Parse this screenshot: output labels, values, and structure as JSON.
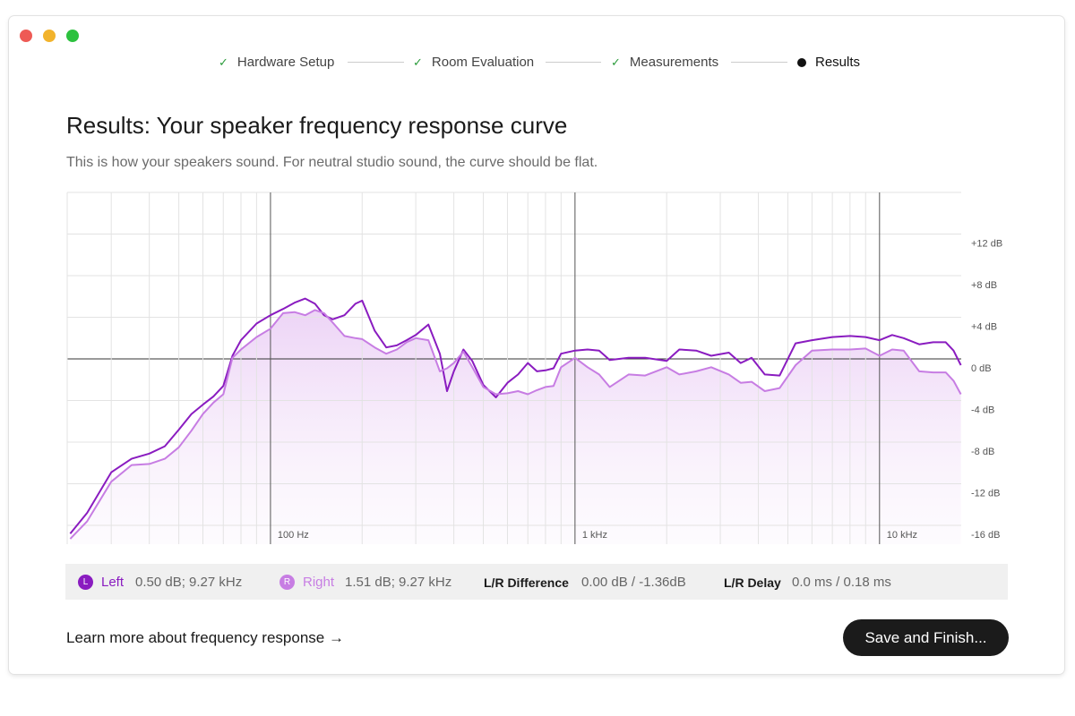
{
  "steps": [
    {
      "label": "Hardware Setup",
      "status": "done"
    },
    {
      "label": "Room Evaluation",
      "status": "done"
    },
    {
      "label": "Measurements",
      "status": "done"
    },
    {
      "label": "Results",
      "status": "current"
    }
  ],
  "heading": "Results: Your speaker frequency response curve",
  "subtitle": "This is how your speakers sound. For neutral studio sound, the curve should be flat.",
  "chart_data": {
    "type": "line",
    "xscale": "log",
    "grid": true,
    "xlim": [
      21.5,
      18800
    ],
    "ylim": [
      -16,
      16
    ],
    "xticks": [
      {
        "value": 100,
        "label": "100 Hz"
      },
      {
        "value": 1000,
        "label": "1 kHz"
      },
      {
        "value": 10000,
        "label": "10 kHz"
      }
    ],
    "yticks": [
      {
        "value": -16,
        "label": "-16 dB"
      },
      {
        "value": -12,
        "label": "-12 dB"
      },
      {
        "value": -8,
        "label": "-8 dB"
      },
      {
        "value": -4,
        "label": "-4 dB"
      },
      {
        "value": 0,
        "label": "0 dB"
      },
      {
        "value": 4,
        "label": "+4 dB"
      },
      {
        "value": 8,
        "label": "+8 dB"
      },
      {
        "value": 12,
        "label": "+12 dB"
      }
    ],
    "x": [
      22,
      25,
      30,
      35,
      40,
      45,
      50,
      55,
      60,
      65,
      70,
      75,
      80,
      90,
      100,
      110,
      120,
      130,
      140,
      150,
      160,
      175,
      190,
      200,
      220,
      240,
      260,
      280,
      300,
      330,
      360,
      380,
      400,
      430,
      460,
      500,
      550,
      600,
      650,
      700,
      750,
      800,
      850,
      900,
      1000,
      1100,
      1200,
      1300,
      1500,
      1700,
      2000,
      2200,
      2500,
      2800,
      3200,
      3500,
      3800,
      4200,
      4700,
      5300,
      6000,
      7000,
      8000,
      9000,
      10000,
      11000,
      12000,
      13500,
      15000,
      16500,
      17500,
      18500
    ],
    "series": [
      {
        "name": "Left",
        "color": "#8a1cc0",
        "values": [
          -16.8,
          -14.8,
          -10.9,
          -9.6,
          -9.1,
          -8.4,
          -6.8,
          -5.3,
          -4.4,
          -3.6,
          -2.6,
          0.3,
          1.8,
          3.4,
          4.2,
          4.8,
          5.4,
          5.8,
          5.3,
          4.2,
          3.8,
          4.2,
          5.3,
          5.6,
          2.7,
          1.1,
          1.3,
          1.8,
          2.3,
          3.3,
          0.5,
          -3.1,
          -1.2,
          0.9,
          -0.2,
          -2.5,
          -3.7,
          -2.3,
          -1.5,
          -0.4,
          -1.2,
          -1.1,
          -0.9,
          0.5,
          0.8,
          0.9,
          0.8,
          -0.1,
          0.1,
          0.1,
          -0.2,
          0.9,
          0.8,
          0.3,
          0.6,
          -0.4,
          0.1,
          -1.5,
          -1.6,
          1.5,
          1.8,
          2.1,
          2.2,
          2.1,
          1.8,
          2.3,
          2.0,
          1.4,
          1.6,
          1.6,
          0.8,
          -0.6
        ]
      },
      {
        "name": "Right",
        "color": "#c77de3",
        "values": [
          -17.3,
          -15.6,
          -11.8,
          -10.2,
          -10.1,
          -9.6,
          -8.5,
          -6.9,
          -5.3,
          -4.2,
          -3.4,
          0.1,
          0.9,
          2.1,
          2.9,
          4.4,
          4.5,
          4.2,
          4.7,
          4.4,
          3.5,
          2.2,
          2.0,
          1.9,
          1.1,
          0.5,
          0.9,
          1.6,
          2.0,
          1.8,
          -1.2,
          -0.9,
          -0.4,
          0.7,
          -0.8,
          -2.7,
          -3.4,
          -3.3,
          -3.1,
          -3.4,
          -3.0,
          -2.7,
          -2.6,
          -0.8,
          0.1,
          -0.8,
          -1.5,
          -2.7,
          -1.5,
          -1.6,
          -0.8,
          -1.5,
          -1.2,
          -0.8,
          -1.5,
          -2.3,
          -2.2,
          -3.1,
          -2.8,
          -0.6,
          0.8,
          0.9,
          0.9,
          1.0,
          0.3,
          0.9,
          0.8,
          -1.2,
          -1.3,
          -1.3,
          -2.1,
          -3.4
        ]
      }
    ]
  },
  "readouts": {
    "left": {
      "badge": "L",
      "text": "0.50 dB; 9.27 kHz"
    },
    "right": {
      "badge": "R",
      "text": "1.51 dB; 9.27 kHz"
    },
    "difference": {
      "label": "L/R Difference",
      "text": "0.00 dB / -1.36dB"
    },
    "delay": {
      "label": "L/R Delay",
      "text": "0.0 ms / 0.18 ms"
    }
  },
  "link": "Learn more about frequency response →",
  "button": "Save and Finish..."
}
